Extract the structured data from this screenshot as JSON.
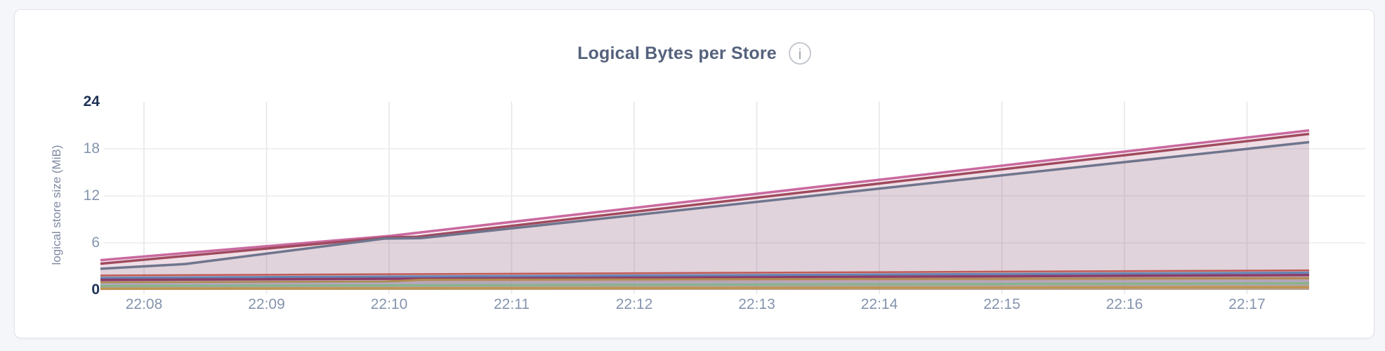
{
  "page": {
    "background": "#f4f6fa",
    "card_background": "#ffffff"
  },
  "header": {
    "title": "Logical Bytes per Store",
    "info_icon_glyph": "i"
  },
  "chart_data": {
    "type": "area",
    "title": "Logical Bytes per Store",
    "xlabel": "",
    "ylabel": "logical store size (MiB)",
    "ylim": [
      0,
      24
    ],
    "yticks": [
      0,
      6,
      12,
      18,
      24
    ],
    "emphasized_yticks": [
      0,
      24
    ],
    "ytick_unit": "MiB",
    "xtick_labels": [
      "22:08",
      "22:09",
      "22:10",
      "22:11",
      "22:12",
      "22:13",
      "22:14",
      "22:15",
      "22:16",
      "22:17"
    ],
    "grid": true,
    "legend_position": "none",
    "colors": {
      "grid_vertical": "#e6e6ea",
      "grid_horizontal": "#ebebee",
      "tick_text": "#8594ad",
      "tick_text_emphasis": "#1e3254",
      "axis_title_text": "#7e89a3",
      "title_text": "#55627d"
    },
    "series": [
      {
        "id": "store-1",
        "color": "#c9699f",
        "width": 3.5,
        "fill_opacity": 0.11,
        "points": [
          [
            0,
            3.8
          ],
          [
            0.24,
            6.9
          ],
          [
            1,
            20.35
          ]
        ]
      },
      {
        "id": "store-2",
        "color": "#a04a5e",
        "width": 3.5,
        "fill_opacity": 0.1,
        "points": [
          [
            0,
            3.35
          ],
          [
            0.239,
            6.7
          ],
          [
            0.262,
            6.78
          ],
          [
            1,
            19.9
          ]
        ]
      },
      {
        "id": "store-3",
        "color": "#6f758e",
        "width": 3.5,
        "fill_opacity": 0.1,
        "points": [
          [
            0,
            2.7
          ],
          [
            0.07,
            3.3
          ],
          [
            0.235,
            6.55
          ],
          [
            0.265,
            6.6
          ],
          [
            1,
            18.85
          ]
        ]
      },
      {
        "id": "store-4",
        "color": "#c05a56",
        "width": 2.5,
        "fill_opacity": 0.14,
        "points": [
          [
            0,
            1.85
          ],
          [
            1,
            2.5
          ]
        ]
      },
      {
        "id": "store-5",
        "color": "#6485b5",
        "width": 3,
        "fill_opacity": 0.14,
        "points": [
          [
            0,
            1.55
          ],
          [
            1,
            2.2
          ]
        ]
      },
      {
        "id": "store-6",
        "color": "#8a3c69",
        "width": 3.5,
        "fill_opacity": 0.14,
        "points": [
          [
            0,
            1.28
          ],
          [
            1,
            1.9
          ]
        ]
      },
      {
        "id": "store-7",
        "color": "#b08a50",
        "width": 3,
        "fill_opacity": 0.15,
        "points": [
          [
            0,
            0.95
          ],
          [
            0.235,
            1.05
          ],
          [
            0.265,
            1.3
          ],
          [
            1,
            1.5
          ]
        ]
      },
      {
        "id": "store-8",
        "color": "#b1a9be",
        "width": 2.5,
        "fill_opacity": 0.14,
        "points": [
          [
            0,
            0.75
          ],
          [
            1,
            1.15
          ]
        ]
      },
      {
        "id": "store-9",
        "color": "#86b48c",
        "width": 3,
        "fill_opacity": 0.15,
        "points": [
          [
            0,
            0.5
          ],
          [
            1,
            0.85
          ]
        ]
      },
      {
        "id": "store-10",
        "color": "#bd9552",
        "width": 3.5,
        "fill_opacity": 0.16,
        "points": [
          [
            0,
            0.15
          ],
          [
            1,
            0.35
          ]
        ]
      }
    ]
  }
}
